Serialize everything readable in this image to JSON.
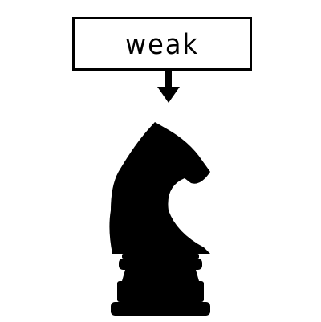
{
  "callout": {
    "text": "weak"
  },
  "piece": {
    "name": "knight",
    "color": "#000000"
  },
  "colors": {
    "background": "#ffffff",
    "ink": "#000000"
  },
  "icons": {
    "arrow": "arrow-down-icon",
    "piece": "chess-knight-icon"
  }
}
